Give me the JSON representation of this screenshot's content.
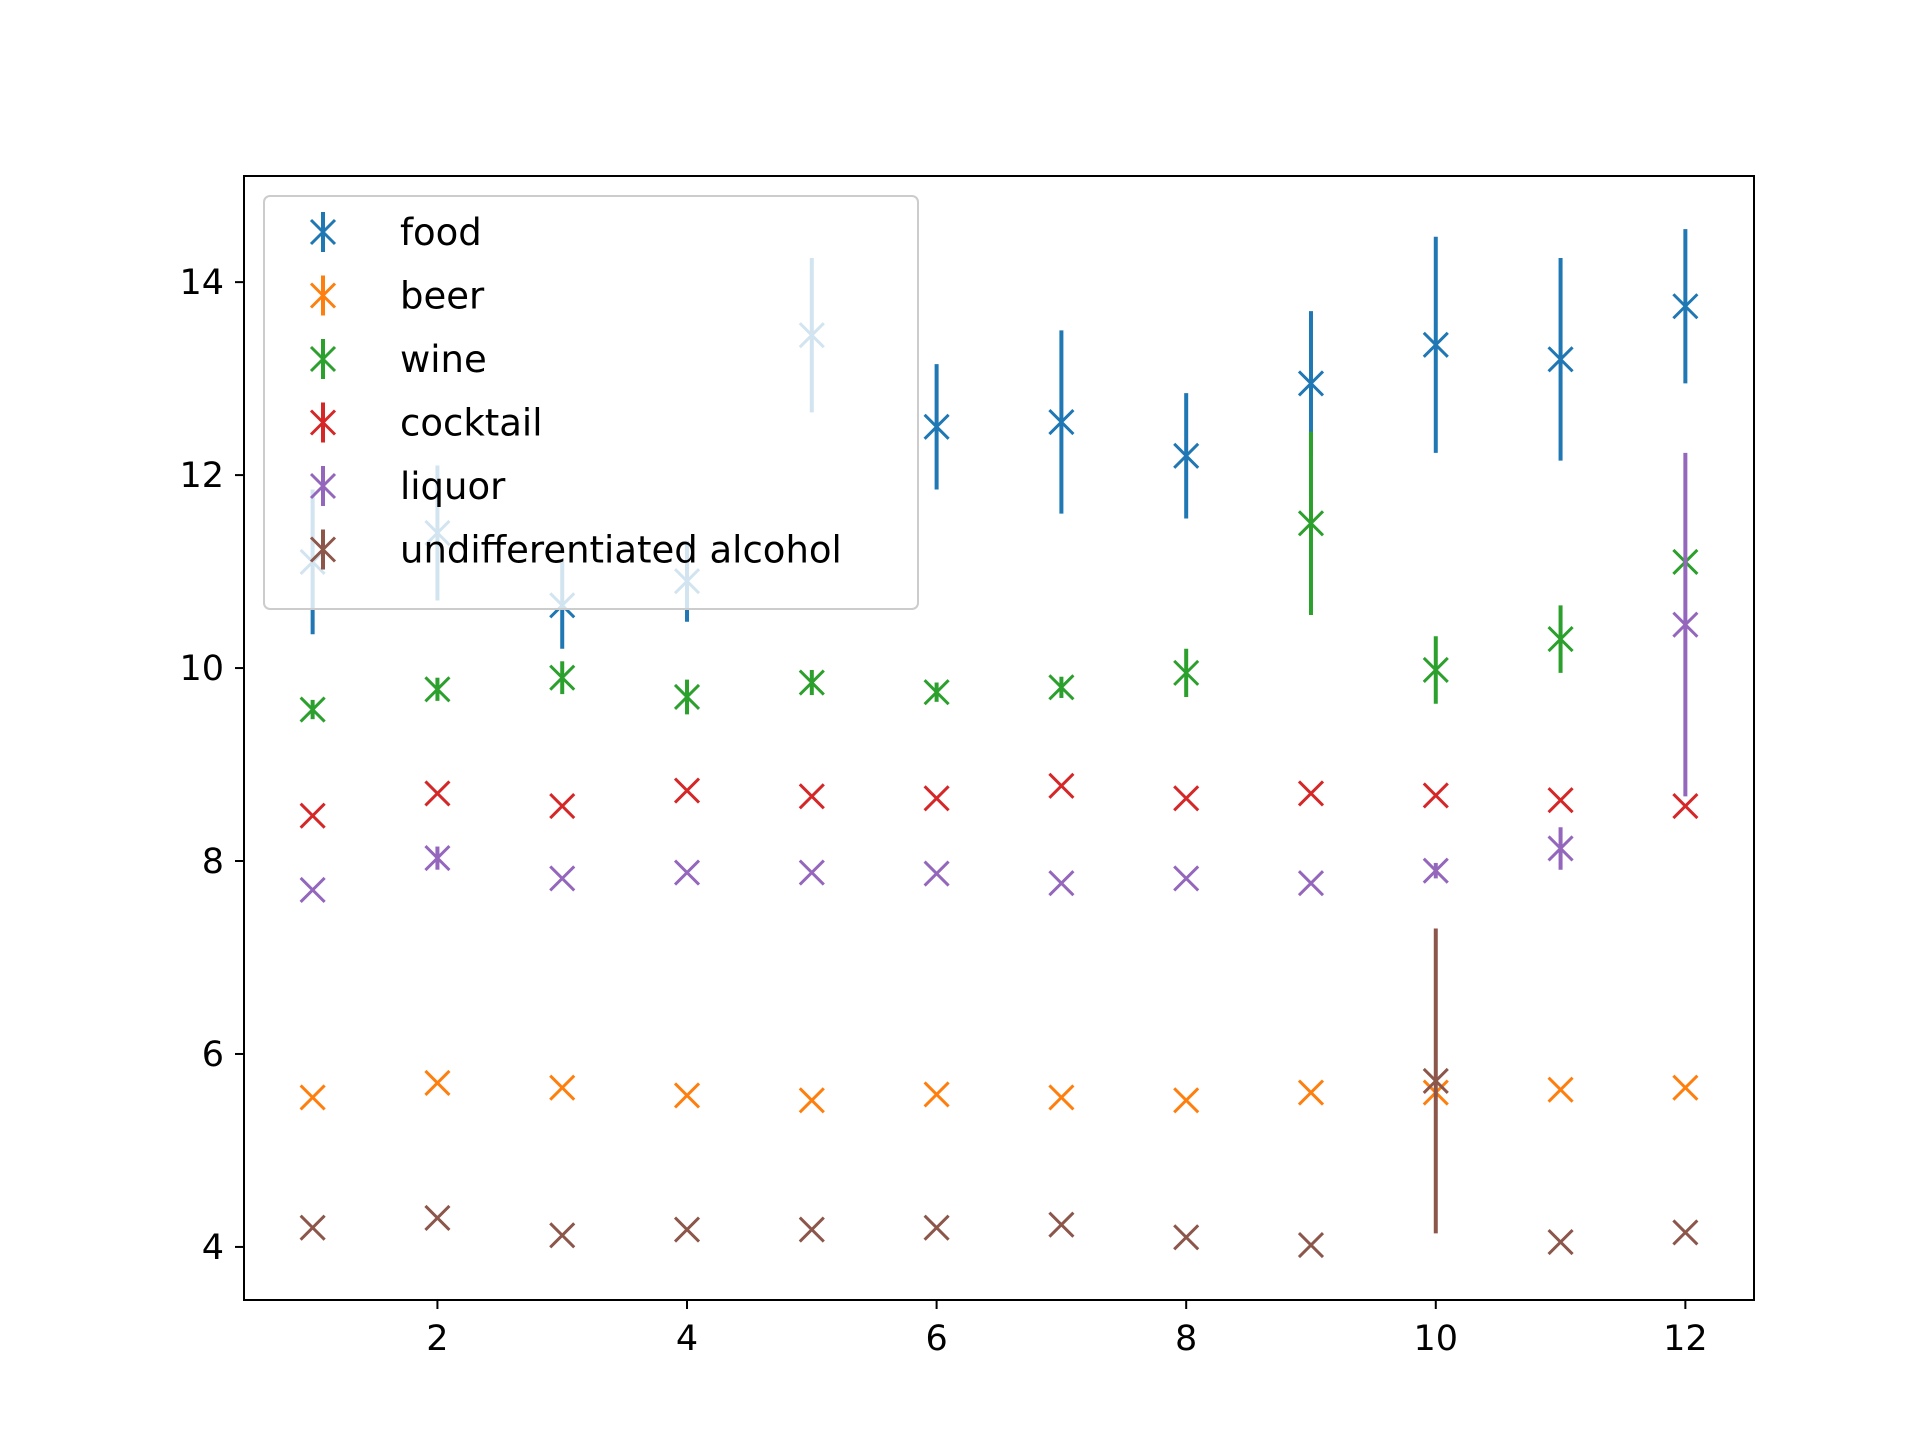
{
  "chart_data": {
    "type": "scatter",
    "marker": "x",
    "error_bars": "vertical",
    "x": [
      1,
      2,
      3,
      4,
      5,
      6,
      7,
      8,
      9,
      10,
      11,
      12
    ],
    "xlim": [
      0.45,
      12.55
    ],
    "ylim": [
      3.45,
      15.1
    ],
    "xticks": [
      2,
      4,
      6,
      8,
      10,
      12
    ],
    "yticks": [
      4,
      6,
      8,
      10,
      12,
      14
    ],
    "xtick_labels": [
      "2",
      "4",
      "6",
      "8",
      "10",
      "12"
    ],
    "ytick_labels": [
      "4",
      "6",
      "8",
      "10",
      "12",
      "14"
    ],
    "title": "",
    "xlabel": "",
    "ylabel": "",
    "grid": false,
    "legend_position": "upper-left",
    "series": [
      {
        "name": "food",
        "color": "#1f77b4",
        "values": [
          11.1,
          11.4,
          10.65,
          10.9,
          13.45,
          12.5,
          12.55,
          12.2,
          12.95,
          13.35,
          13.2,
          13.75
        ],
        "errors": [
          0.75,
          0.7,
          0.45,
          0.42,
          0.8,
          0.65,
          0.95,
          0.65,
          0.75,
          1.12,
          1.05,
          0.8
        ]
      },
      {
        "name": "beer",
        "color": "#ff7f0e",
        "values": [
          5.55,
          5.7,
          5.65,
          5.57,
          5.52,
          5.58,
          5.55,
          5.52,
          5.6,
          5.6,
          5.63,
          5.65
        ],
        "errors": [
          0.0,
          0.0,
          0.0,
          0.0,
          0.0,
          0.0,
          0.0,
          0.0,
          0.0,
          0.0,
          0.0,
          0.0
        ]
      },
      {
        "name": "wine",
        "color": "#2ca02c",
        "values": [
          9.57,
          9.78,
          9.9,
          9.7,
          9.85,
          9.75,
          9.8,
          9.95,
          11.5,
          9.98,
          10.3,
          11.1
        ],
        "errors": [
          0.1,
          0.12,
          0.17,
          0.18,
          0.13,
          0.1,
          0.11,
          0.25,
          0.95,
          0.35,
          0.35,
          0.0
        ]
      },
      {
        "name": "cocktail",
        "color": "#d62728",
        "values": [
          8.47,
          8.7,
          8.57,
          8.73,
          8.67,
          8.65,
          8.78,
          8.65,
          8.7,
          8.68,
          8.63,
          8.57
        ],
        "errors": [
          0.0,
          0.0,
          0.0,
          0.0,
          0.0,
          0.0,
          0.0,
          0.0,
          0.0,
          0.0,
          0.0,
          0.0
        ]
      },
      {
        "name": "liquor",
        "color": "#9467bd",
        "values": [
          7.7,
          8.03,
          7.82,
          7.88,
          7.88,
          7.87,
          7.77,
          7.82,
          7.77,
          7.9,
          8.13,
          10.45
        ],
        "errors": [
          0.0,
          0.12,
          0.0,
          0.0,
          0.0,
          0.0,
          0.0,
          0.0,
          0.0,
          0.08,
          0.22,
          1.78
        ]
      },
      {
        "name": "undifferentiated alcohol",
        "color": "#8c564b",
        "values": [
          4.2,
          4.3,
          4.12,
          4.18,
          4.18,
          4.2,
          4.23,
          4.1,
          4.02,
          5.72,
          4.05,
          4.15
        ],
        "errors": [
          0.0,
          0.0,
          0.0,
          0.0,
          0.0,
          0.0,
          0.0,
          0.0,
          0.0,
          1.58,
          0.0,
          0.0
        ]
      }
    ]
  }
}
